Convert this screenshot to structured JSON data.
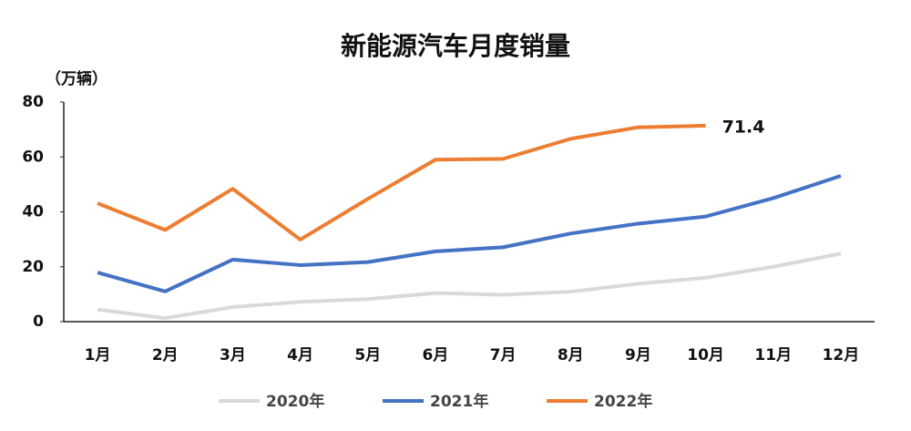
{
  "chart_data": {
    "type": "line",
    "title": "新能源汽车月度销量",
    "y_label": "（万辆）",
    "categories": [
      "1月",
      "2月",
      "3月",
      "4月",
      "5月",
      "6月",
      "7月",
      "8月",
      "9月",
      "10月",
      "11月",
      "12月"
    ],
    "series": [
      {
        "name": "2020年",
        "color": "#d9d9d9",
        "values": [
          4.4,
          1.3,
          5.3,
          7.2,
          8.2,
          10.4,
          9.8,
          10.9,
          13.8,
          16.0,
          20.0,
          24.8
        ]
      },
      {
        "name": "2021年",
        "color": "#4472c4",
        "values": [
          17.9,
          11.0,
          22.6,
          20.6,
          21.7,
          25.6,
          27.1,
          32.1,
          35.7,
          38.3,
          45.0,
          53.1
        ]
      },
      {
        "name": "2022年",
        "color": "#ed7d31",
        "values": [
          43.1,
          33.4,
          48.4,
          29.9,
          44.7,
          59.0,
          59.3,
          66.6,
          70.8,
          71.4,
          null,
          null
        ]
      }
    ],
    "ylim": [
      0,
      80
    ],
    "yticks": [
      0,
      20,
      40,
      60,
      80
    ],
    "grid": false
  }
}
